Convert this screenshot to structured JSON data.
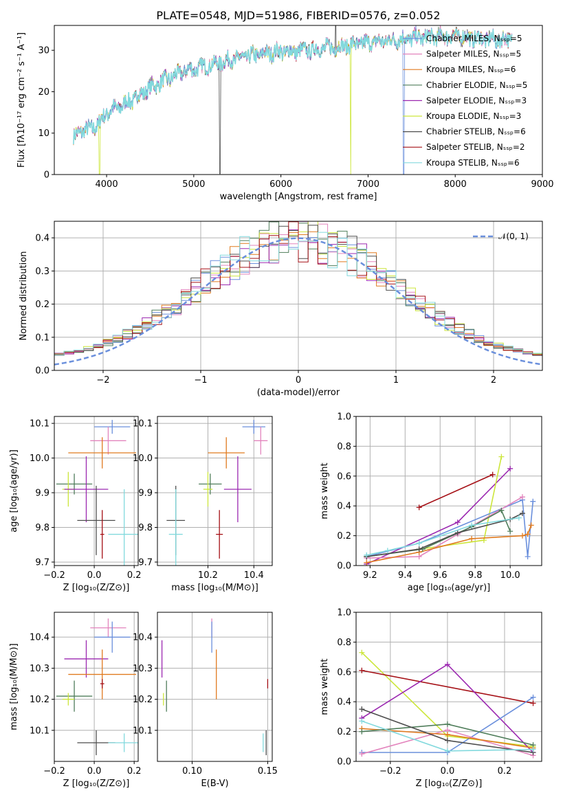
{
  "colors": {
    "chabrier_miles": "#6a8fdc",
    "salpeter_miles": "#e384bd",
    "kroupa_miles": "#e07a1f",
    "chabrier_elodie": "#4f7d5a",
    "salpeter_elodie": "#9b27b0",
    "kroupa_elodie": "#cce63a",
    "chabrier_stelib": "#4d4d4d",
    "salpeter_stelib": "#a50f15",
    "kroupa_stelib": "#82d9dd",
    "normal": "#6a8fdc"
  },
  "chart_data": [
    {
      "id": "spectrum",
      "type": "line",
      "title": "PLATE=0548, MJD=51986, FIBERID=0576, z=0.052",
      "xlabel": "wavelength [Angstrom, rest frame]",
      "ylabel": "Flux [fλ10⁻¹⁷ erg cm⁻² s⁻¹ A⁻¹]",
      "xlim": [
        3400,
        9000
      ],
      "ylim": [
        0,
        36
      ],
      "xticks": [
        "4000",
        "5000",
        "6000",
        "7000",
        "8000",
        "9000"
      ],
      "yticks": [
        "0",
        "10",
        "20",
        "30"
      ],
      "legend": [
        "Chabrier MILES, Nₛₛₚ=5",
        "Salpeter MILES, Nₛₛₚ=5",
        "Kroupa MILES, Nₛₛₚ=6",
        "Chabrier ELODIE, Nₛₛₚ=5",
        "Salpeter ELODIE, Nₛₛₚ=3",
        "Kroupa ELODIE, Nₛₛₚ=3",
        "Chabrier STELIB, Nₛₛₚ=6",
        "Salpeter STELIB, Nₛₛₚ=2",
        "Kroupa STELIB, Nₛₛₚ=6"
      ],
      "continuum": {
        "x": [
          3620,
          3700,
          3800,
          3900,
          4000,
          4100,
          4200,
          4300,
          4400,
          4500,
          4700,
          4900,
          5100,
          5300,
          5500,
          5700,
          5900,
          6100,
          6300,
          6500,
          6700,
          6900,
          7100,
          7300,
          7500,
          7700,
          7900,
          8100,
          8300,
          8500,
          8650
        ],
        "y": [
          9,
          10.5,
          11,
          12,
          15,
          16,
          17,
          18,
          19.5,
          21,
          23,
          25,
          26,
          27,
          28,
          28.8,
          29.5,
          29.7,
          30,
          30.5,
          31,
          31.5,
          32,
          32.5,
          33,
          33.2,
          33.5,
          33.2,
          32.8,
          32.5,
          32.8
        ]
      }
    },
    {
      "id": "residuals",
      "type": "histogram",
      "xlabel": "(data-model)/error",
      "ylabel": "Normed distribution",
      "xlim": [
        -2.5,
        2.5
      ],
      "ylim": [
        0,
        0.45
      ],
      "xticks": [
        "−2",
        "−1",
        "0",
        "1",
        "2"
      ],
      "yticks": [
        "0.0",
        "0.1",
        "0.2",
        "0.3",
        "0.4"
      ],
      "legend": "𝒩(0, 1)"
    },
    {
      "id": "age_vs_Z",
      "type": "scatter",
      "xlabel": "Z [log₁₀(Z/Z⊙)]",
      "ylabel": "age  [log₁₀(age/yr)]",
      "xlim": [
        -0.2,
        0.22
      ],
      "ylim": [
        9.69,
        10.12
      ],
      "xticks": [
        "−0.2",
        "0.0",
        "0.2"
      ],
      "yticks": [
        "9.7",
        "9.8",
        "9.9",
        "10.0",
        "10.1"
      ],
      "points": [
        {
          "c": "chabrier_miles",
          "x": 0.09,
          "y": 10.09,
          "xerr": 0.09,
          "yerr": 0.02
        },
        {
          "c": "salpeter_miles",
          "x": 0.07,
          "y": 10.05,
          "xerr": 0.09,
          "yerr": 0.04
        },
        {
          "c": "kroupa_miles",
          "x": 0.04,
          "y": 10.015,
          "xerr": 0.17,
          "yerr": 0.045
        },
        {
          "c": "chabrier_elodie",
          "x": -0.1,
          "y": 9.925,
          "xerr": 0.09,
          "yerr": 0.03
        },
        {
          "c": "kroupa_elodie",
          "x": -0.13,
          "y": 9.91,
          "xerr": 0.03,
          "yerr": 0.05
        },
        {
          "c": "salpeter_elodie",
          "x": -0.04,
          "y": 9.91,
          "xerr": 0.11,
          "yerr": 0.095
        },
        {
          "c": "chabrier_stelib",
          "x": 0.01,
          "y": 9.82,
          "xerr": 0.095,
          "yerr": 0.1
        },
        {
          "c": "kroupa_stelib",
          "x": 0.15,
          "y": 9.78,
          "xerr": 0.08,
          "yerr": 0.13
        },
        {
          "c": "salpeter_stelib",
          "x": 0.04,
          "y": 9.78,
          "xerr": 0.01,
          "yerr": 0.07
        }
      ]
    },
    {
      "id": "age_vs_mass",
      "type": "scatter",
      "xlabel": "mass [log₁₀(M/M⊙)]",
      "ylabel": "",
      "xlim": [
        9.98,
        10.48
      ],
      "ylim": [
        9.69,
        10.12
      ],
      "xticks": [
        "10.2",
        "10.4"
      ],
      "yticks": [
        "9.7",
        "9.8",
        "9.9",
        "10.0",
        "10.1"
      ],
      "points": [
        {
          "c": "chabrier_miles",
          "x": 10.4,
          "y": 10.09,
          "xerr": 0.05,
          "yerr": 0.02
        },
        {
          "c": "salpeter_miles",
          "x": 10.43,
          "y": 10.05,
          "xerr": 0.03,
          "yerr": 0.04
        },
        {
          "c": "kroupa_miles",
          "x": 10.28,
          "y": 10.015,
          "xerr": 0.08,
          "yerr": 0.045
        },
        {
          "c": "chabrier_elodie",
          "x": 10.21,
          "y": 9.925,
          "xerr": 0.05,
          "yerr": 0.03
        },
        {
          "c": "kroupa_elodie",
          "x": 10.2,
          "y": 9.91,
          "xerr": 0.02,
          "yerr": 0.05
        },
        {
          "c": "salpeter_elodie",
          "x": 10.33,
          "y": 9.91,
          "xerr": 0.06,
          "yerr": 0.095
        },
        {
          "c": "chabrier_stelib",
          "x": 10.06,
          "y": 9.82,
          "xerr": 0.04,
          "yerr": 0.1
        },
        {
          "c": "kroupa_stelib",
          "x": 10.06,
          "y": 9.78,
          "xerr": 0.03,
          "yerr": 0.13
        },
        {
          "c": "salpeter_stelib",
          "x": 10.25,
          "y": 9.78,
          "xerr": 0.015,
          "yerr": 0.07
        }
      ]
    },
    {
      "id": "weight_vs_age",
      "type": "line",
      "xlabel": "age  [log₁₀(age/yr)]",
      "ylabel": "mass weight",
      "xlim": [
        9.12,
        10.18
      ],
      "ylim": [
        0,
        1
      ],
      "xticks": [
        "9.2",
        "9.4",
        "9.6",
        "9.8",
        "10.0"
      ],
      "yticks": [
        "0.0",
        "0.2",
        "0.4",
        "0.6",
        "0.8",
        "1.0"
      ],
      "series": [
        {
          "c": "salpeter_stelib",
          "x": [
            9.48,
            9.9
          ],
          "y": [
            0.39,
            0.61
          ]
        },
        {
          "c": "salpeter_elodie",
          "x": [
            9.18,
            9.7,
            10.0
          ],
          "y": [
            0.01,
            0.29,
            0.65
          ]
        },
        {
          "c": "kroupa_elodie",
          "x": [
            9.18,
            9.85,
            9.95
          ],
          "y": [
            0.06,
            0.17,
            0.73
          ]
        },
        {
          "c": "chabrier_miles",
          "x": [
            9.18,
            9.48,
            10.07,
            10.1,
            10.13
          ],
          "y": [
            0.06,
            0.15,
            0.44,
            0.06,
            0.43
          ]
        },
        {
          "c": "salpeter_miles",
          "x": [
            9.18,
            9.48,
            9.7,
            10.07
          ],
          "y": [
            0.05,
            0.06,
            0.21,
            0.46
          ]
        },
        {
          "c": "kroupa_miles",
          "x": [
            9.18,
            9.48,
            9.78,
            10.07,
            10.1,
            10.12
          ],
          "y": [
            0.02,
            0.09,
            0.18,
            0.2,
            0.21,
            0.27
          ]
        },
        {
          "c": "chabrier_elodie",
          "x": [
            9.18,
            9.5,
            9.78,
            9.95,
            10.0
          ],
          "y": [
            0.06,
            0.11,
            0.26,
            0.37,
            0.23
          ]
        },
        {
          "c": "chabrier_stelib",
          "x": [
            9.18,
            9.48,
            9.7,
            10.0,
            10.07
          ],
          "y": [
            0.06,
            0.11,
            0.22,
            0.31,
            0.35
          ]
        },
        {
          "c": "kroupa_stelib",
          "x": [
            9.18,
            9.3,
            9.48,
            9.78,
            10.05
          ],
          "y": [
            0.07,
            0.1,
            0.15,
            0.27,
            0.32
          ]
        }
      ]
    },
    {
      "id": "mass_vs_Z",
      "type": "scatter",
      "xlabel": "Z [log₁₀(Z/Z⊙)]",
      "ylabel": "mass [log₁₀(M/M⊙)]",
      "xlim": [
        -0.2,
        0.22
      ],
      "ylim": [
        10.0,
        10.48
      ],
      "xticks": [
        "−0.2",
        "0.0",
        "0.2"
      ],
      "yticks": [
        "10.1",
        "10.2",
        "10.3",
        "10.4"
      ],
      "points": [
        {
          "c": "salpeter_miles",
          "x": 0.07,
          "y": 10.43,
          "xerr": 0.09,
          "yerr": 0.03
        },
        {
          "c": "chabrier_miles",
          "x": 0.09,
          "y": 10.4,
          "xerr": 0.09,
          "yerr": 0.05
        },
        {
          "c": "salpeter_elodie",
          "x": -0.04,
          "y": 10.33,
          "xerr": 0.11,
          "yerr": 0.06
        },
        {
          "c": "kroupa_miles",
          "x": 0.04,
          "y": 10.28,
          "xerr": 0.17,
          "yerr": 0.08
        },
        {
          "c": "salpeter_stelib",
          "x": 0.04,
          "y": 10.25,
          "xerr": 0.01,
          "yerr": 0.015
        },
        {
          "c": "chabrier_elodie",
          "x": -0.1,
          "y": 10.21,
          "xerr": 0.09,
          "yerr": 0.05
        },
        {
          "c": "kroupa_elodie",
          "x": -0.13,
          "y": 10.2,
          "xerr": 0.03,
          "yerr": 0.02
        },
        {
          "c": "chabrier_stelib",
          "x": 0.01,
          "y": 10.06,
          "xerr": 0.095,
          "yerr": 0.04
        },
        {
          "c": "kroupa_stelib",
          "x": 0.15,
          "y": 10.06,
          "xerr": 0.08,
          "yerr": 0.03
        }
      ]
    },
    {
      "id": "mass_vs_ebv",
      "type": "scatter",
      "xlabel": "E(B-V)",
      "ylabel": "",
      "xlim": [
        0.077,
        0.153
      ],
      "ylim": [
        10.0,
        10.48
      ],
      "xticks": [
        "0.10",
        "0.15"
      ],
      "yticks": [
        "10.1",
        "10.2",
        "10.3",
        "10.4"
      ],
      "points": [
        {
          "c": "salpeter_miles",
          "x": 0.113,
          "y": 10.43,
          "xerr": 0,
          "yerr": 0.03
        },
        {
          "c": "chabrier_miles",
          "x": 0.113,
          "y": 10.4,
          "xerr": 0,
          "yerr": 0.05
        },
        {
          "c": "salpeter_elodie",
          "x": 0.08,
          "y": 10.33,
          "xerr": 0,
          "yerr": 0.06
        },
        {
          "c": "kroupa_miles",
          "x": 0.116,
          "y": 10.28,
          "xerr": 0,
          "yerr": 0.08
        },
        {
          "c": "salpeter_stelib",
          "x": 0.15,
          "y": 10.25,
          "xerr": 0,
          "yerr": 0.015
        },
        {
          "c": "chabrier_elodie",
          "x": 0.083,
          "y": 10.21,
          "xerr": 0,
          "yerr": 0.05
        },
        {
          "c": "kroupa_elodie",
          "x": 0.081,
          "y": 10.2,
          "xerr": 0,
          "yerr": 0.02
        },
        {
          "c": "chabrier_stelib",
          "x": 0.149,
          "y": 10.06,
          "xerr": 0,
          "yerr": 0.04
        },
        {
          "c": "kroupa_stelib",
          "x": 0.147,
          "y": 10.06,
          "xerr": 0,
          "yerr": 0.03
        }
      ]
    },
    {
      "id": "weight_vs_Z",
      "type": "line",
      "xlabel": "Z [log₁₀(Z/Z⊙)]",
      "ylabel": "mass weight",
      "xlim": [
        -0.32,
        0.33
      ],
      "ylim": [
        0,
        1
      ],
      "xticks": [
        "−0.2",
        "0.0",
        "0.2"
      ],
      "yticks": [
        "0.0",
        "0.2",
        "0.4",
        "0.6",
        "0.8",
        "1.0"
      ],
      "series": [
        {
          "c": "kroupa_elodie",
          "x": [
            -0.3,
            0.0,
            0.3
          ],
          "y": [
            0.73,
            0.17,
            0.1
          ]
        },
        {
          "c": "salpeter_stelib",
          "x": [
            -0.3,
            0.3
          ],
          "y": [
            0.61,
            0.39
          ]
        },
        {
          "c": "salpeter_elodie",
          "x": [
            -0.3,
            0.0,
            0.3
          ],
          "y": [
            0.29,
            0.65,
            0.06
          ]
        },
        {
          "c": "chabrier_miles",
          "x": [
            -0.3,
            0.0,
            0.3
          ],
          "y": [
            0.06,
            0.06,
            0.43
          ]
        },
        {
          "c": "salpeter_miles",
          "x": [
            -0.3,
            0.0,
            0.3
          ],
          "y": [
            0.05,
            0.21,
            0.04
          ]
        },
        {
          "c": "kroupa_miles",
          "x": [
            -0.3,
            0.0,
            0.3
          ],
          "y": [
            0.22,
            0.18,
            0.09
          ]
        },
        {
          "c": "chabrier_elodie",
          "x": [
            -0.3,
            0.0,
            0.3
          ],
          "y": [
            0.2,
            0.25,
            0.11
          ]
        },
        {
          "c": "chabrier_stelib",
          "x": [
            -0.3,
            0.0,
            0.3
          ],
          "y": [
            0.35,
            0.14,
            0.06
          ]
        },
        {
          "c": "kroupa_stelib",
          "x": [
            -0.3,
            0.0,
            0.3
          ],
          "y": [
            0.27,
            0.07,
            0.08
          ]
        }
      ]
    }
  ]
}
